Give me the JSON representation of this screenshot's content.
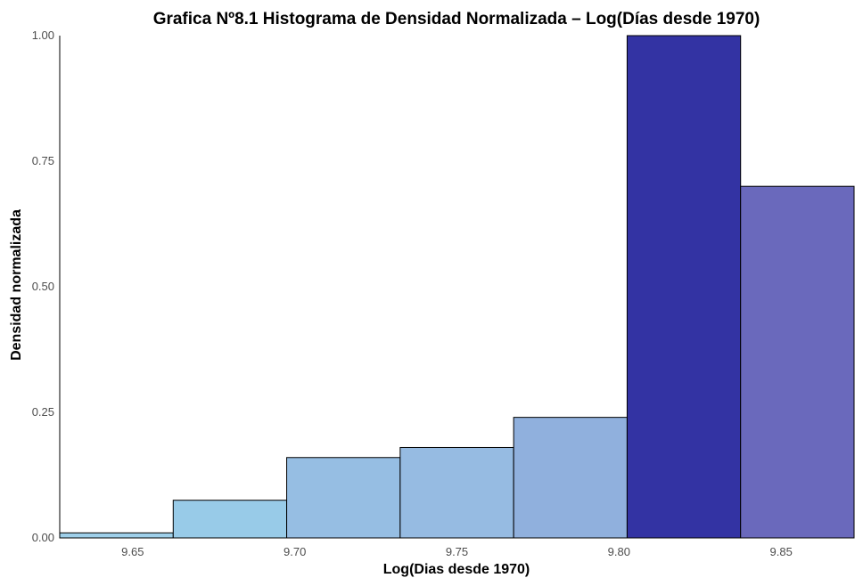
{
  "chart_data": {
    "type": "bar",
    "title": "Grafica Nº8.1 Histograma de Densidad Normalizada – Log(Días desde 1970)",
    "xlabel": "Log(Dias desde 1970)",
    "ylabel": "Densidad normalizada",
    "xlim": [
      9.6275,
      9.8725
    ],
    "ylim": [
      0,
      1.0
    ],
    "x_ticks": [
      "9.65",
      "9.70",
      "9.75",
      "9.80",
      "9.85"
    ],
    "x_tick_values": [
      9.65,
      9.7,
      9.75,
      9.8,
      9.85
    ],
    "y_ticks": [
      "0.00",
      "0.25",
      "0.50",
      "0.75",
      "1.00"
    ],
    "y_tick_values": [
      0,
      0.25,
      0.5,
      0.75,
      1.0
    ],
    "grid": false,
    "bins": [
      {
        "start": 9.6275,
        "end": 9.6625,
        "value": 0.01,
        "color": "#9ecfe9"
      },
      {
        "start": 9.6625,
        "end": 9.6975,
        "value": 0.075,
        "color": "#98cbe8"
      },
      {
        "start": 9.6975,
        "end": 9.7325,
        "value": 0.16,
        "color": "#96bee3"
      },
      {
        "start": 9.7325,
        "end": 9.7675,
        "value": 0.18,
        "color": "#96bbe2"
      },
      {
        "start": 9.7675,
        "end": 9.8025,
        "value": 0.24,
        "color": "#90b0dd"
      },
      {
        "start": 9.8025,
        "end": 9.8375,
        "value": 1.0,
        "color": "#3333a3"
      },
      {
        "start": 9.8375,
        "end": 9.8725,
        "value": 0.7,
        "color": "#6a69bc"
      }
    ]
  }
}
